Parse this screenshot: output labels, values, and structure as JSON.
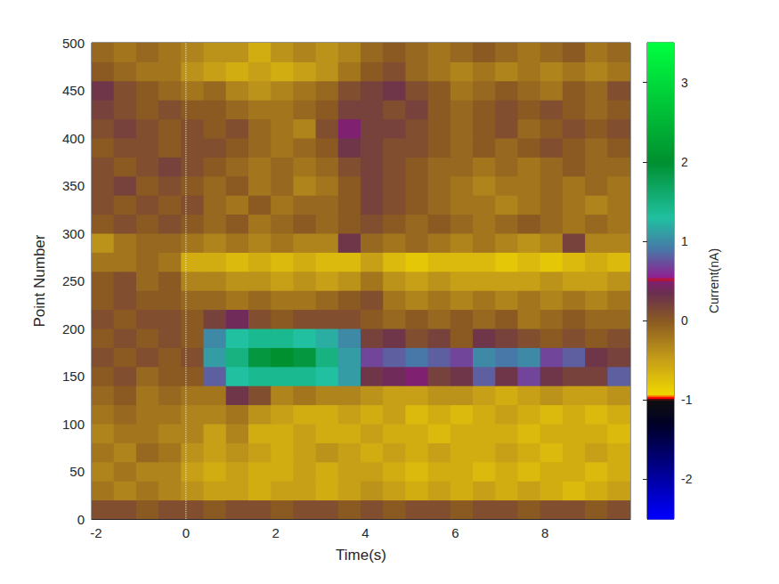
{
  "chart_data": {
    "type": "heatmap",
    "xlabel": "Time(s)",
    "ylabel": "Point Number",
    "xlim": [
      -2.1,
      9.9
    ],
    "xticks": [
      -2,
      0,
      2,
      4,
      6,
      8
    ],
    "ylim": [
      0,
      500
    ],
    "yticks": [
      0,
      50,
      100,
      150,
      200,
      250,
      300,
      350,
      400,
      450,
      500
    ],
    "vline": 0,
    "cells": {
      "x": [
        -1.85,
        -1.35,
        -0.85,
        -0.35,
        0.15,
        0.65,
        1.15,
        1.65,
        2.15,
        2.65,
        3.15,
        3.65,
        4.15,
        4.65,
        5.15,
        5.65,
        6.15,
        6.65,
        7.15,
        7.65,
        8.15,
        8.65,
        9.15,
        9.65
      ],
      "y": [
        10,
        30,
        50,
        70,
        90,
        110,
        130,
        150,
        170,
        190,
        210,
        230,
        250,
        270,
        290,
        310,
        330,
        350,
        370,
        390,
        410,
        430,
        450,
        470,
        490
      ],
      "values": [
        [
          0.1,
          0.1,
          0.0,
          0.1,
          0.1,
          0.0,
          0.1,
          0.1,
          0.0,
          0.1,
          0.1,
          0.0,
          0.1,
          0.0,
          0.1,
          0.1,
          0.0,
          0.1,
          0.1,
          0.0,
          0.1,
          0.1,
          0.0,
          0.1
        ],
        [
          -0.2,
          -0.3,
          -0.2,
          -0.3,
          -0.4,
          -0.5,
          -0.5,
          -0.6,
          -0.5,
          -0.5,
          -0.6,
          -0.5,
          -0.4,
          -0.5,
          -0.6,
          -0.5,
          -0.6,
          -0.5,
          -0.6,
          -0.5,
          -0.6,
          -0.7,
          -0.6,
          -0.5
        ],
        [
          -0.3,
          -0.2,
          -0.3,
          -0.3,
          -0.5,
          -0.6,
          -0.5,
          -0.6,
          -0.6,
          -0.5,
          -0.6,
          -0.5,
          -0.5,
          -0.6,
          -0.7,
          -0.6,
          -0.6,
          -0.7,
          -0.6,
          -0.7,
          -0.6,
          -0.6,
          -0.7,
          -0.6
        ],
        [
          -0.2,
          -0.3,
          -0.1,
          -0.2,
          -0.4,
          -0.5,
          -0.4,
          -0.5,
          -0.6,
          -0.5,
          -0.4,
          -0.5,
          -0.6,
          -0.5,
          -0.6,
          -0.5,
          -0.6,
          -0.6,
          -0.5,
          -0.6,
          -0.7,
          -0.6,
          -0.5,
          -0.6
        ],
        [
          -0.3,
          -0.2,
          -0.2,
          -0.3,
          -0.3,
          -0.5,
          -0.3,
          -0.6,
          -0.6,
          -0.5,
          -0.6,
          -0.6,
          -0.5,
          -0.6,
          -0.6,
          -0.7,
          -0.6,
          -0.6,
          -0.6,
          -0.7,
          -0.6,
          -0.6,
          -0.6,
          -0.7
        ],
        [
          -0.2,
          -0.1,
          -0.2,
          -0.2,
          -0.3,
          -0.3,
          -0.2,
          -0.4,
          -0.5,
          -0.6,
          -0.6,
          -0.5,
          -0.6,
          -0.5,
          -0.7,
          -0.6,
          -0.7,
          -0.6,
          -0.5,
          -0.6,
          -0.7,
          -0.6,
          -0.7,
          -0.6
        ],
        [
          -0.1,
          0.0,
          -0.2,
          -0.1,
          -0.2,
          -0.2,
          0.3,
          0.1,
          -0.3,
          -0.2,
          -0.3,
          -0.3,
          -0.4,
          -0.5,
          -0.5,
          -0.4,
          -0.4,
          -0.5,
          -0.6,
          -0.5,
          -0.4,
          -0.5,
          -0.5,
          -0.4
        ],
        [
          0.0,
          0.1,
          -0.1,
          0.0,
          0.0,
          0.8,
          1.3,
          1.4,
          1.4,
          1.4,
          1.3,
          1.1,
          0.3,
          0.4,
          0.5,
          0.2,
          0.3,
          0.8,
          0.3,
          0.7,
          0.3,
          0.2,
          0.2,
          0.8
        ],
        [
          0.1,
          0.0,
          0.1,
          0.0,
          0.1,
          1.1,
          1.5,
          1.9,
          2.0,
          1.9,
          1.5,
          1.1,
          0.7,
          0.8,
          0.9,
          0.8,
          0.7,
          1.0,
          0.9,
          1.0,
          0.7,
          0.8,
          0.3,
          0.2
        ],
        [
          0.0,
          0.1,
          0.0,
          0.1,
          0.0,
          1.0,
          1.3,
          1.4,
          1.4,
          1.3,
          1.2,
          1.0,
          0.2,
          0.3,
          0.1,
          0.2,
          0.0,
          0.3,
          0.2,
          0.1,
          0.0,
          0.1,
          0.0,
          0.1
        ],
        [
          0.1,
          0.0,
          0.1,
          0.1,
          0.0,
          0.2,
          0.4,
          0.1,
          0.0,
          0.1,
          0.1,
          0.1,
          0.0,
          -0.1,
          0.0,
          -0.1,
          0.0,
          -0.1,
          0.0,
          -0.2,
          -0.1,
          0.0,
          -0.1,
          -0.1
        ],
        [
          0.0,
          0.1,
          0.0,
          0.0,
          -0.1,
          -0.1,
          -0.2,
          -0.1,
          -0.2,
          -0.2,
          -0.1,
          0.0,
          0.1,
          -0.2,
          -0.3,
          -0.2,
          -0.3,
          -0.2,
          -0.3,
          -0.2,
          -0.3,
          -0.2,
          -0.3,
          -0.2
        ],
        [
          0.0,
          0.1,
          -0.1,
          0.0,
          -0.3,
          -0.3,
          -0.4,
          -0.4,
          -0.5,
          -0.4,
          -0.5,
          -0.4,
          -0.2,
          -0.4,
          -0.5,
          -0.4,
          -0.5,
          -0.5,
          -0.5,
          -0.5,
          -0.4,
          -0.5,
          -0.5,
          -0.4
        ],
        [
          -0.2,
          -0.2,
          -0.1,
          -0.2,
          -0.6,
          -0.6,
          -0.7,
          -0.6,
          -0.7,
          -0.6,
          -0.7,
          -0.7,
          -0.5,
          -0.7,
          -0.8,
          -0.7,
          -0.7,
          -0.7,
          -0.8,
          -0.7,
          -0.8,
          -0.7,
          -0.6,
          -0.7
        ],
        [
          -0.4,
          -0.2,
          -0.1,
          -0.1,
          -0.2,
          -0.3,
          -0.2,
          -0.3,
          -0.2,
          -0.3,
          -0.3,
          0.3,
          -0.1,
          -0.2,
          -0.1,
          -0.2,
          -0.3,
          -0.2,
          -0.3,
          -0.4,
          -0.3,
          0.2,
          -0.3,
          -0.3
        ],
        [
          0.0,
          0.1,
          0.0,
          0.1,
          0.0,
          -0.1,
          0.0,
          -0.2,
          -0.1,
          0.0,
          -0.1,
          0.0,
          0.1,
          0.0,
          -0.1,
          0.0,
          -0.1,
          -0.2,
          -0.1,
          0.0,
          -0.1,
          -0.2,
          -0.1,
          -0.2
        ],
        [
          0.1,
          0.0,
          0.1,
          0.0,
          0.1,
          -0.1,
          -0.2,
          0.0,
          -0.2,
          -0.1,
          -0.1,
          0.0,
          0.2,
          0.1,
          0.0,
          -0.1,
          -0.2,
          -0.2,
          -0.3,
          -0.2,
          -0.1,
          -0.2,
          -0.3,
          -0.2
        ],
        [
          0.1,
          0.2,
          0.0,
          0.1,
          0.0,
          -0.1,
          0.0,
          -0.2,
          -0.1,
          -0.3,
          -0.2,
          0.0,
          0.2,
          0.1,
          0.0,
          -0.1,
          -0.2,
          -0.3,
          -0.2,
          -0.2,
          -0.1,
          -0.2,
          -0.1,
          -0.2
        ],
        [
          0.1,
          0.0,
          0.1,
          0.2,
          0.1,
          0.0,
          -0.1,
          -0.2,
          -0.1,
          -0.2,
          -0.1,
          0.1,
          0.2,
          0.1,
          0.0,
          -0.1,
          -0.1,
          -0.2,
          -0.1,
          -0.2,
          -0.1,
          0.0,
          -0.1,
          -0.1
        ],
        [
          0.0,
          0.1,
          0.1,
          0.0,
          0.1,
          0.1,
          0.0,
          -0.1,
          -0.2,
          -0.1,
          0.0,
          0.3,
          0.2,
          0.1,
          0.1,
          0.0,
          -0.1,
          0.0,
          -0.1,
          0.0,
          0.1,
          0.0,
          -0.1,
          0.0
        ],
        [
          0.1,
          0.2,
          0.1,
          0.0,
          0.1,
          0.0,
          0.1,
          -0.1,
          -0.2,
          -0.3,
          0.1,
          0.5,
          0.2,
          0.2,
          0.1,
          0.0,
          -0.1,
          0.0,
          0.1,
          -0.1,
          0.0,
          0.1,
          0.0,
          0.1
        ],
        [
          0.2,
          0.1,
          0.0,
          0.1,
          0.0,
          0.0,
          -0.1,
          -0.2,
          -0.2,
          -0.1,
          0.0,
          0.2,
          0.2,
          0.1,
          0.2,
          0.0,
          -0.1,
          0.0,
          0.1,
          0.0,
          0.1,
          0.0,
          -0.1,
          0.0
        ],
        [
          0.3,
          0.1,
          0.0,
          -0.1,
          -0.2,
          -0.1,
          -0.3,
          -0.4,
          -0.3,
          -0.2,
          -0.1,
          0.1,
          0.2,
          0.3,
          0.1,
          0.0,
          -0.2,
          -0.1,
          0.0,
          -0.1,
          -0.2,
          0.0,
          -0.1,
          0.1
        ],
        [
          0.0,
          -0.1,
          -0.2,
          -0.2,
          -0.4,
          -0.5,
          -0.6,
          -0.5,
          -0.6,
          -0.5,
          -0.4,
          -0.2,
          0.0,
          0.1,
          -0.1,
          -0.2,
          -0.3,
          -0.2,
          -0.3,
          -0.2,
          -0.3,
          -0.2,
          -0.3,
          -0.2
        ],
        [
          -0.1,
          -0.2,
          -0.1,
          -0.2,
          -0.3,
          -0.4,
          -0.4,
          -0.6,
          -0.4,
          -0.3,
          -0.4,
          -0.3,
          -0.1,
          0.0,
          -0.1,
          -0.2,
          -0.1,
          0.0,
          -0.1,
          -0.2,
          -0.1,
          0.0,
          -0.2,
          -0.1
        ]
      ]
    },
    "colorbar": {
      "label": "Current(nA)",
      "clim": [
        -2.5,
        3.5
      ],
      "ticks": [
        -2,
        -1,
        0,
        1,
        2,
        3
      ]
    }
  }
}
